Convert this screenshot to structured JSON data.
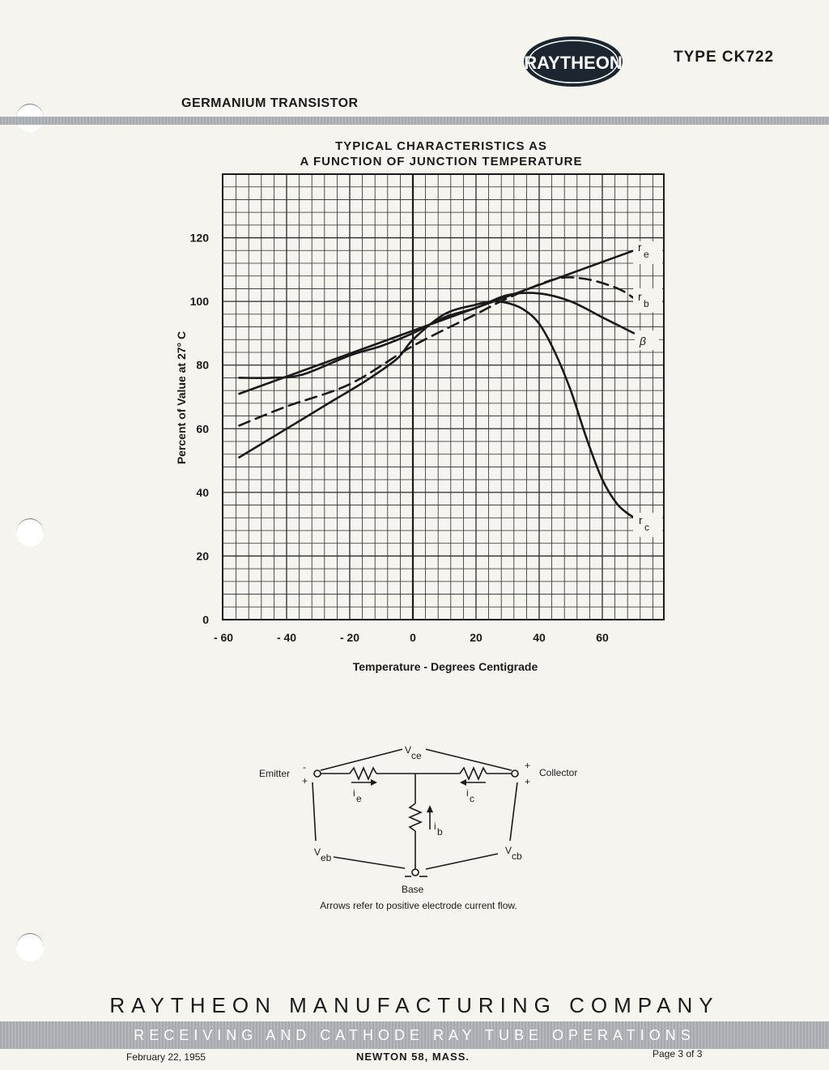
{
  "header": {
    "logo_text": "RAYTHEON",
    "type_label": "TYPE CK722",
    "product_line": "GERMANIUM TRANSISTOR"
  },
  "chart_data": {
    "type": "line",
    "title": "TYPICAL CHARACTERISTICS AS",
    "subtitle": "A FUNCTION OF JUNCTION TEMPERATURE",
    "xlabel": "Temperature - Degrees Centigrade",
    "ylabel": "Percent of Value at 27° C",
    "x_ticks": [
      "- 60",
      "- 40",
      "- 20",
      "0",
      "20",
      "40",
      "60"
    ],
    "y_ticks": [
      "0",
      "20",
      "40",
      "60",
      "80",
      "100",
      "120"
    ],
    "xlim": [
      -60,
      80
    ],
    "ylim": [
      0,
      140
    ],
    "grid": true,
    "series": [
      {
        "name": "re",
        "style": "solid",
        "x": [
          -55,
          70
        ],
        "y": [
          71,
          116
        ]
      },
      {
        "name": "rb",
        "style": "dashed",
        "x": [
          -55,
          -40,
          -20,
          0,
          20,
          30,
          45,
          55,
          65,
          70
        ],
        "y": [
          61,
          67,
          74,
          86,
          96,
          101,
          107,
          107,
          104,
          101
        ]
      },
      {
        "name": "β",
        "style": "solid",
        "x": [
          -55,
          -45,
          -35,
          -20,
          -10,
          0,
          10,
          20,
          30,
          40,
          50,
          60,
          70
        ],
        "y": [
          76,
          76,
          77,
          83,
          86,
          90,
          95,
          98,
          102,
          102.5,
          100,
          95,
          90
        ]
      },
      {
        "name": "rc",
        "style": "solid",
        "x": [
          -55,
          -40,
          -25,
          -15,
          -5,
          0,
          10,
          20,
          25,
          30,
          35,
          40,
          45,
          50,
          55,
          60,
          65,
          70
        ],
        "y": [
          51,
          60,
          69,
          75,
          82,
          88,
          96,
          99,
          100,
          99.5,
          97.5,
          93,
          84,
          72,
          57,
          44,
          36,
          32
        ]
      }
    ],
    "series_labels": [
      "r",
      "e",
      "r",
      "b",
      "β",
      "r",
      "c"
    ]
  },
  "circuit": {
    "emitter": "Emitter",
    "collector": "Collector",
    "base": "Base",
    "vce": "V",
    "vce_sub": "ce",
    "veb": "V",
    "veb_sub": "eb",
    "vcb": "V",
    "vcb_sub": "cb",
    "ie": "i",
    "ie_sub": "e",
    "ic": "i",
    "ic_sub": "c",
    "ib": "i",
    "ib_sub": "b",
    "minus": "-",
    "plus": "+",
    "note": "Arrows refer to positive electrode current flow."
  },
  "footer": {
    "company": "RAYTHEON MANUFACTURING COMPANY",
    "division": "RECEIVING AND CATHODE RAY TUBE OPERATIONS",
    "date": "February 22, 1955",
    "city": "NEWTON 58, MASS.",
    "page": "Page 3 of 3"
  }
}
